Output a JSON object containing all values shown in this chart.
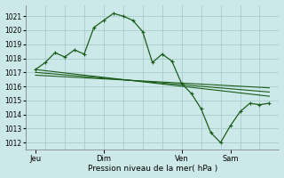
{
  "xlabel": "Pression niveau de la mer( hPa )",
  "bg_color": "#cce8e8",
  "grid_color": "#aacccc",
  "line_color": "#1a5c1a",
  "ylim": [
    1011.5,
    1021.8
  ],
  "yticks": [
    1012,
    1013,
    1014,
    1015,
    1016,
    1017,
    1018,
    1019,
    1020,
    1021
  ],
  "xtick_labels": [
    "Jeu",
    "Dim",
    "Ven",
    "Sam"
  ],
  "xtick_pos": [
    0.5,
    4.0,
    8.0,
    10.5
  ],
  "xlim": [
    0,
    13
  ],
  "num_vgrid": 13,
  "main_x": [
    0.5,
    1.0,
    1.5,
    2.0,
    2.5,
    3.0,
    3.5,
    4.0,
    4.5,
    5.0,
    5.5,
    6.0,
    6.5,
    7.0,
    7.5,
    8.0,
    8.5,
    9.0,
    9.5,
    10.0,
    10.5,
    11.0,
    11.5,
    12.0,
    12.5
  ],
  "main_y": [
    1017.2,
    1017.7,
    1018.4,
    1018.1,
    1018.6,
    1018.3,
    1020.2,
    1020.7,
    1021.2,
    1021.0,
    1020.7,
    1019.9,
    1017.7,
    1018.3,
    1017.8,
    1016.2,
    1015.5,
    1014.4,
    1012.7,
    1012.0,
    1013.2,
    1014.2,
    1014.8,
    1014.7,
    1014.8
  ],
  "trend_lines": [
    {
      "x": [
        0.5,
        12.5
      ],
      "y": [
        1017.2,
        1015.3
      ]
    },
    {
      "x": [
        0.5,
        12.5
      ],
      "y": [
        1017.0,
        1015.6
      ]
    },
    {
      "x": [
        0.5,
        12.5
      ],
      "y": [
        1016.8,
        1015.9
      ]
    }
  ]
}
